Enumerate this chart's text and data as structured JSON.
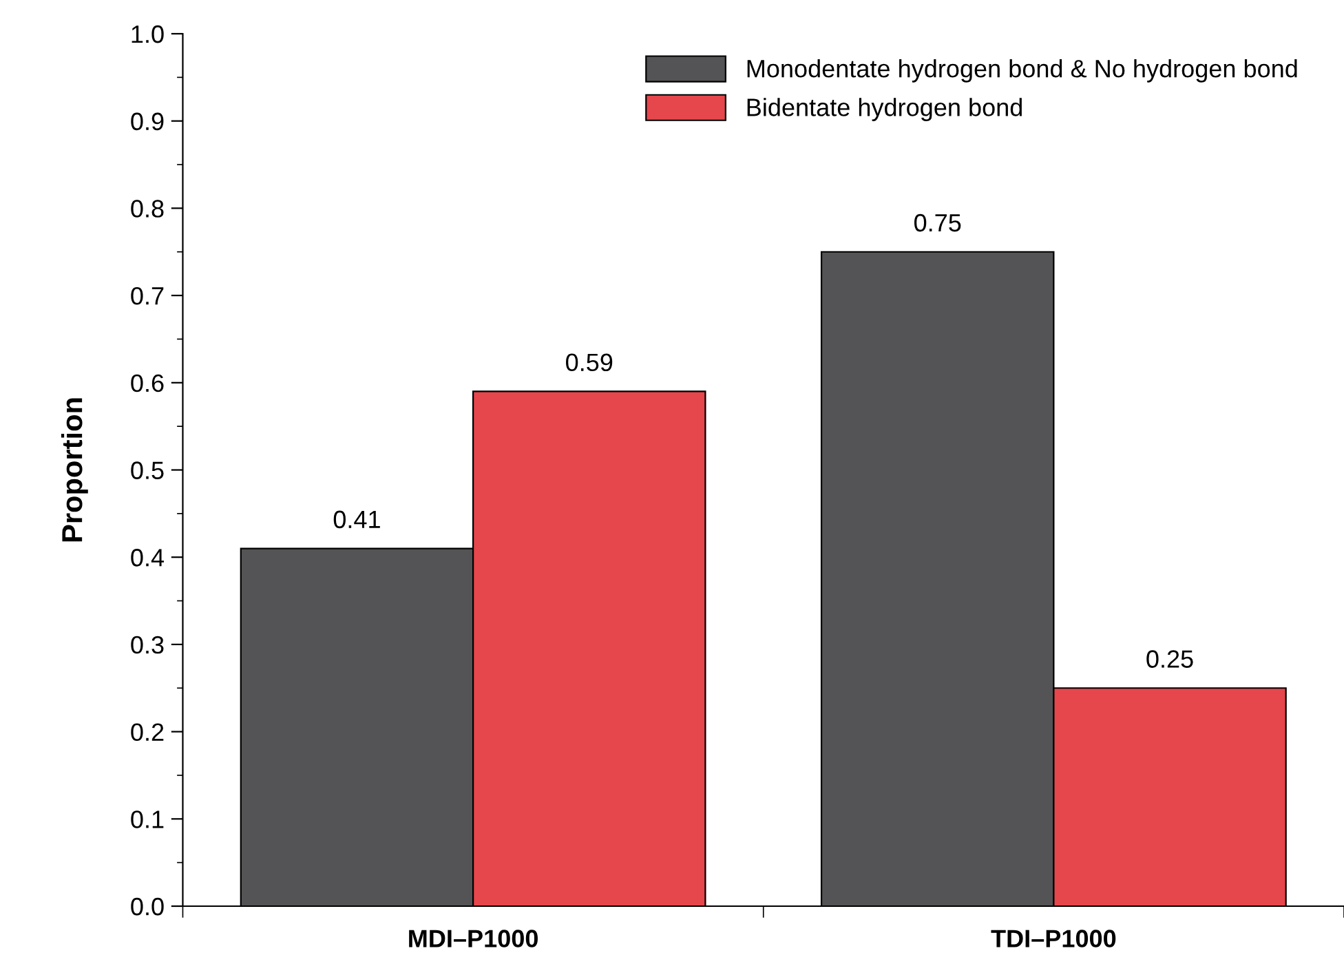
{
  "chart_data": {
    "type": "bar",
    "ylabel": "Proportion",
    "categories": [
      "MDI–P1000",
      "TDI–P1000"
    ],
    "series": [
      {
        "name": "Monodentate hydrogen bond & No hydrogen bond",
        "color": "#545456",
        "values": [
          0.41,
          0.75
        ]
      },
      {
        "name": "Bidentate hydrogen bond",
        "color": "#e5474c",
        "values": [
          0.59,
          0.25
        ]
      }
    ],
    "ylim": [
      0,
      1.0
    ],
    "yticks": [
      {
        "value": 0,
        "label": "0.0"
      },
      0.1,
      0.2,
      0.3,
      0.4,
      0.5,
      0.6,
      0.7,
      0.8,
      0.9,
      {
        "value": 1,
        "label": "1.0"
      }
    ],
    "data_labels": true,
    "legend": "top right",
    "grid": false
  }
}
